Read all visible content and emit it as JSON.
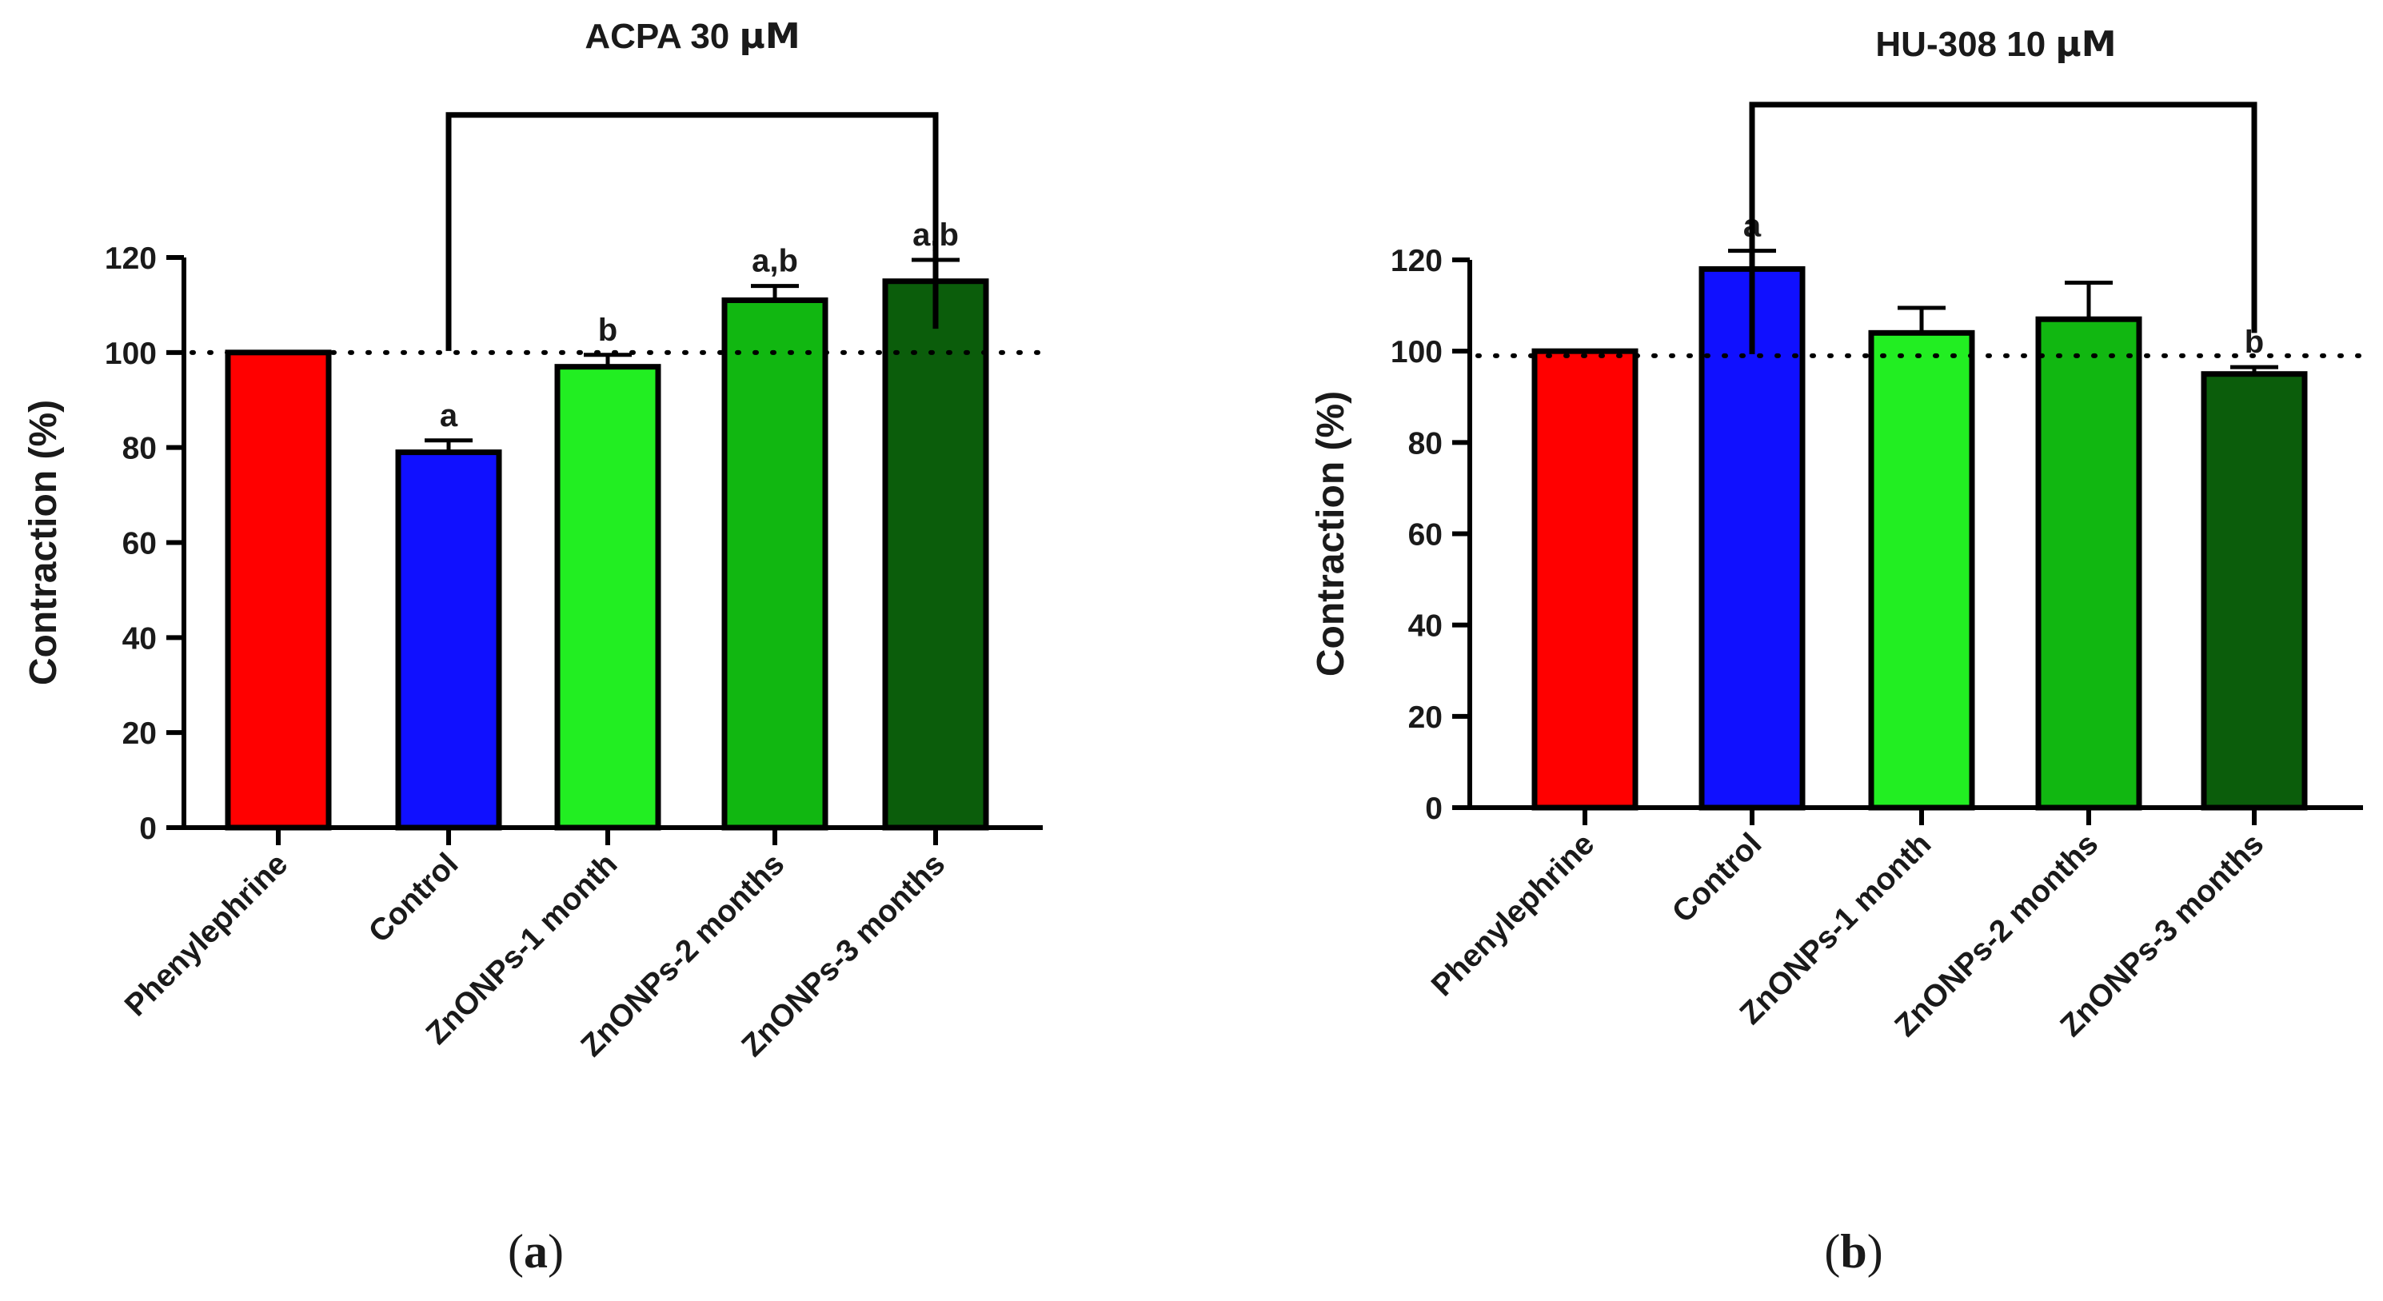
{
  "chart_data": [
    {
      "type": "bar",
      "title_main": "ACPA 30 ",
      "title_unit": "μM",
      "ylabel": "Contraction (%)",
      "xlabel": "",
      "ylim": [
        0,
        120
      ],
      "yticks": [
        0,
        20,
        40,
        60,
        80,
        100,
        120
      ],
      "categories": [
        "Phenylephrine",
        "Control",
        "ZnONPs-1 month",
        "ZnONPs-2 months",
        "ZnONPs-3 months"
      ],
      "values": [
        100,
        79,
        97,
        111,
        115
      ],
      "errors": [
        0,
        2.5,
        2.5,
        3,
        4.5
      ],
      "colors": [
        "#ff0000",
        "#1010ff",
        "#22ee22",
        "#11b711",
        "#0b5d0b"
      ],
      "bar_labels": [
        "",
        "a",
        "b",
        "a,b",
        "a,b"
      ],
      "reference_line": 100,
      "bracket": {
        "from": "Control",
        "to": "ZnONPs-3 months",
        "level": 150
      },
      "panel_label": "(a)"
    },
    {
      "type": "bar",
      "title_main": "HU-308 10 ",
      "title_unit": "μM",
      "ylabel": "Contraction (%)",
      "xlabel": "",
      "ylim": [
        0,
        120
      ],
      "yticks": [
        0,
        20,
        40,
        60,
        80,
        100,
        120
      ],
      "categories": [
        "Phenylephrine",
        "Control",
        "ZnONPs-1 month",
        "ZnONPs-2 months",
        "ZnONPs-3 months"
      ],
      "values": [
        100,
        118,
        104,
        107,
        95
      ],
      "errors": [
        0,
        4,
        5.5,
        8,
        1.5
      ],
      "colors": [
        "#ff0000",
        "#1010ff",
        "#22ee22",
        "#11b711",
        "#0b5d0b"
      ],
      "bar_labels": [
        "",
        "a",
        "",
        "",
        "b"
      ],
      "reference_line": 99,
      "bracket": {
        "from": "Control",
        "to": "ZnONPs-3 months",
        "level": 154
      },
      "panel_label": "(b)"
    }
  ]
}
